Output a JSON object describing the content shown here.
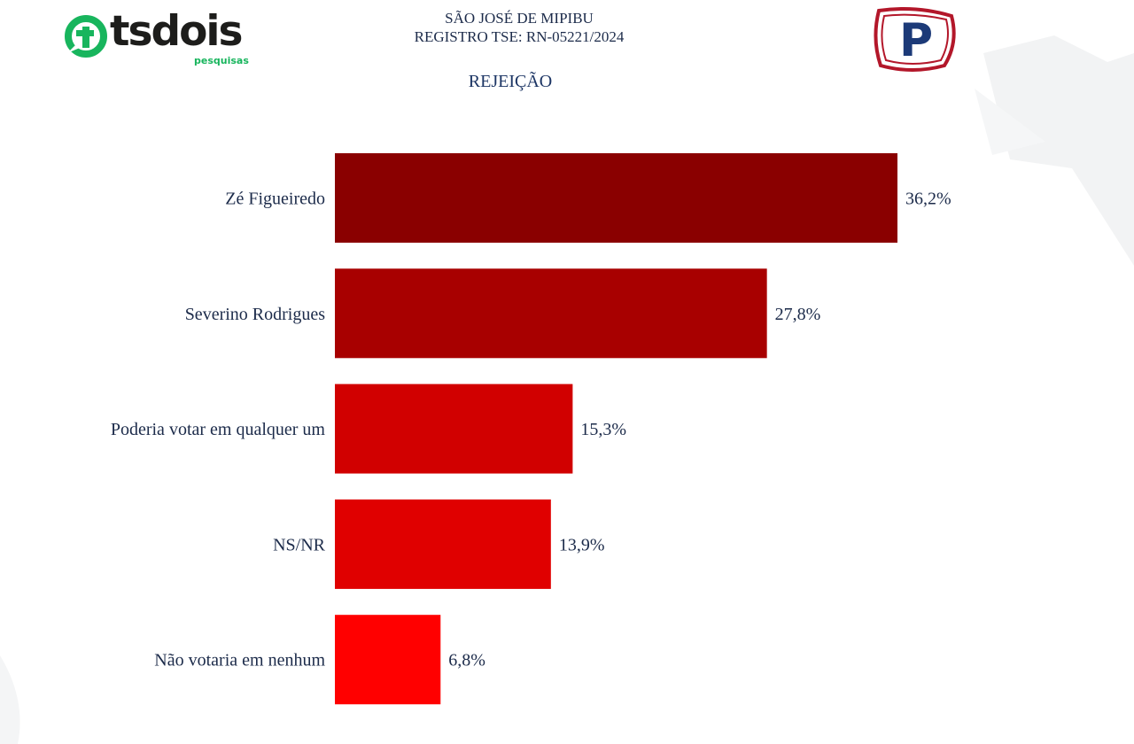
{
  "header": {
    "brand_word": "tsdois",
    "brand_sub": "pesquisas",
    "location": "SÃO JOSÉ DE MIPIBU",
    "registration": "REGISTRO TSE: RN-05221/2024",
    "right_logo_letter": "P"
  },
  "colors": {
    "brand_green": "#18b55d",
    "text_navy": "#1c2b4a",
    "logo_red": "#b3172a",
    "logo_blue": "#1c3a78"
  },
  "chart_data": {
    "type": "bar",
    "orientation": "horizontal",
    "title": "REJEIÇÃO",
    "categories": [
      "Zé Figueiredo",
      "Severino Rodrigues",
      "Poderia votar em qualquer um",
      "NS/NR",
      "Não votaria em nenhum"
    ],
    "values": [
      36.2,
      27.8,
      15.3,
      13.9,
      6.8
    ],
    "value_labels": [
      "36,2%",
      "27,8%",
      "15,3%",
      "13,9%",
      "6,8%"
    ],
    "bar_colors": [
      "#8a0000",
      "#a80000",
      "#d10000",
      "#e00000",
      "#ff0000"
    ],
    "xlim": [
      0,
      36.2
    ],
    "grid": false,
    "legend": "none"
  }
}
